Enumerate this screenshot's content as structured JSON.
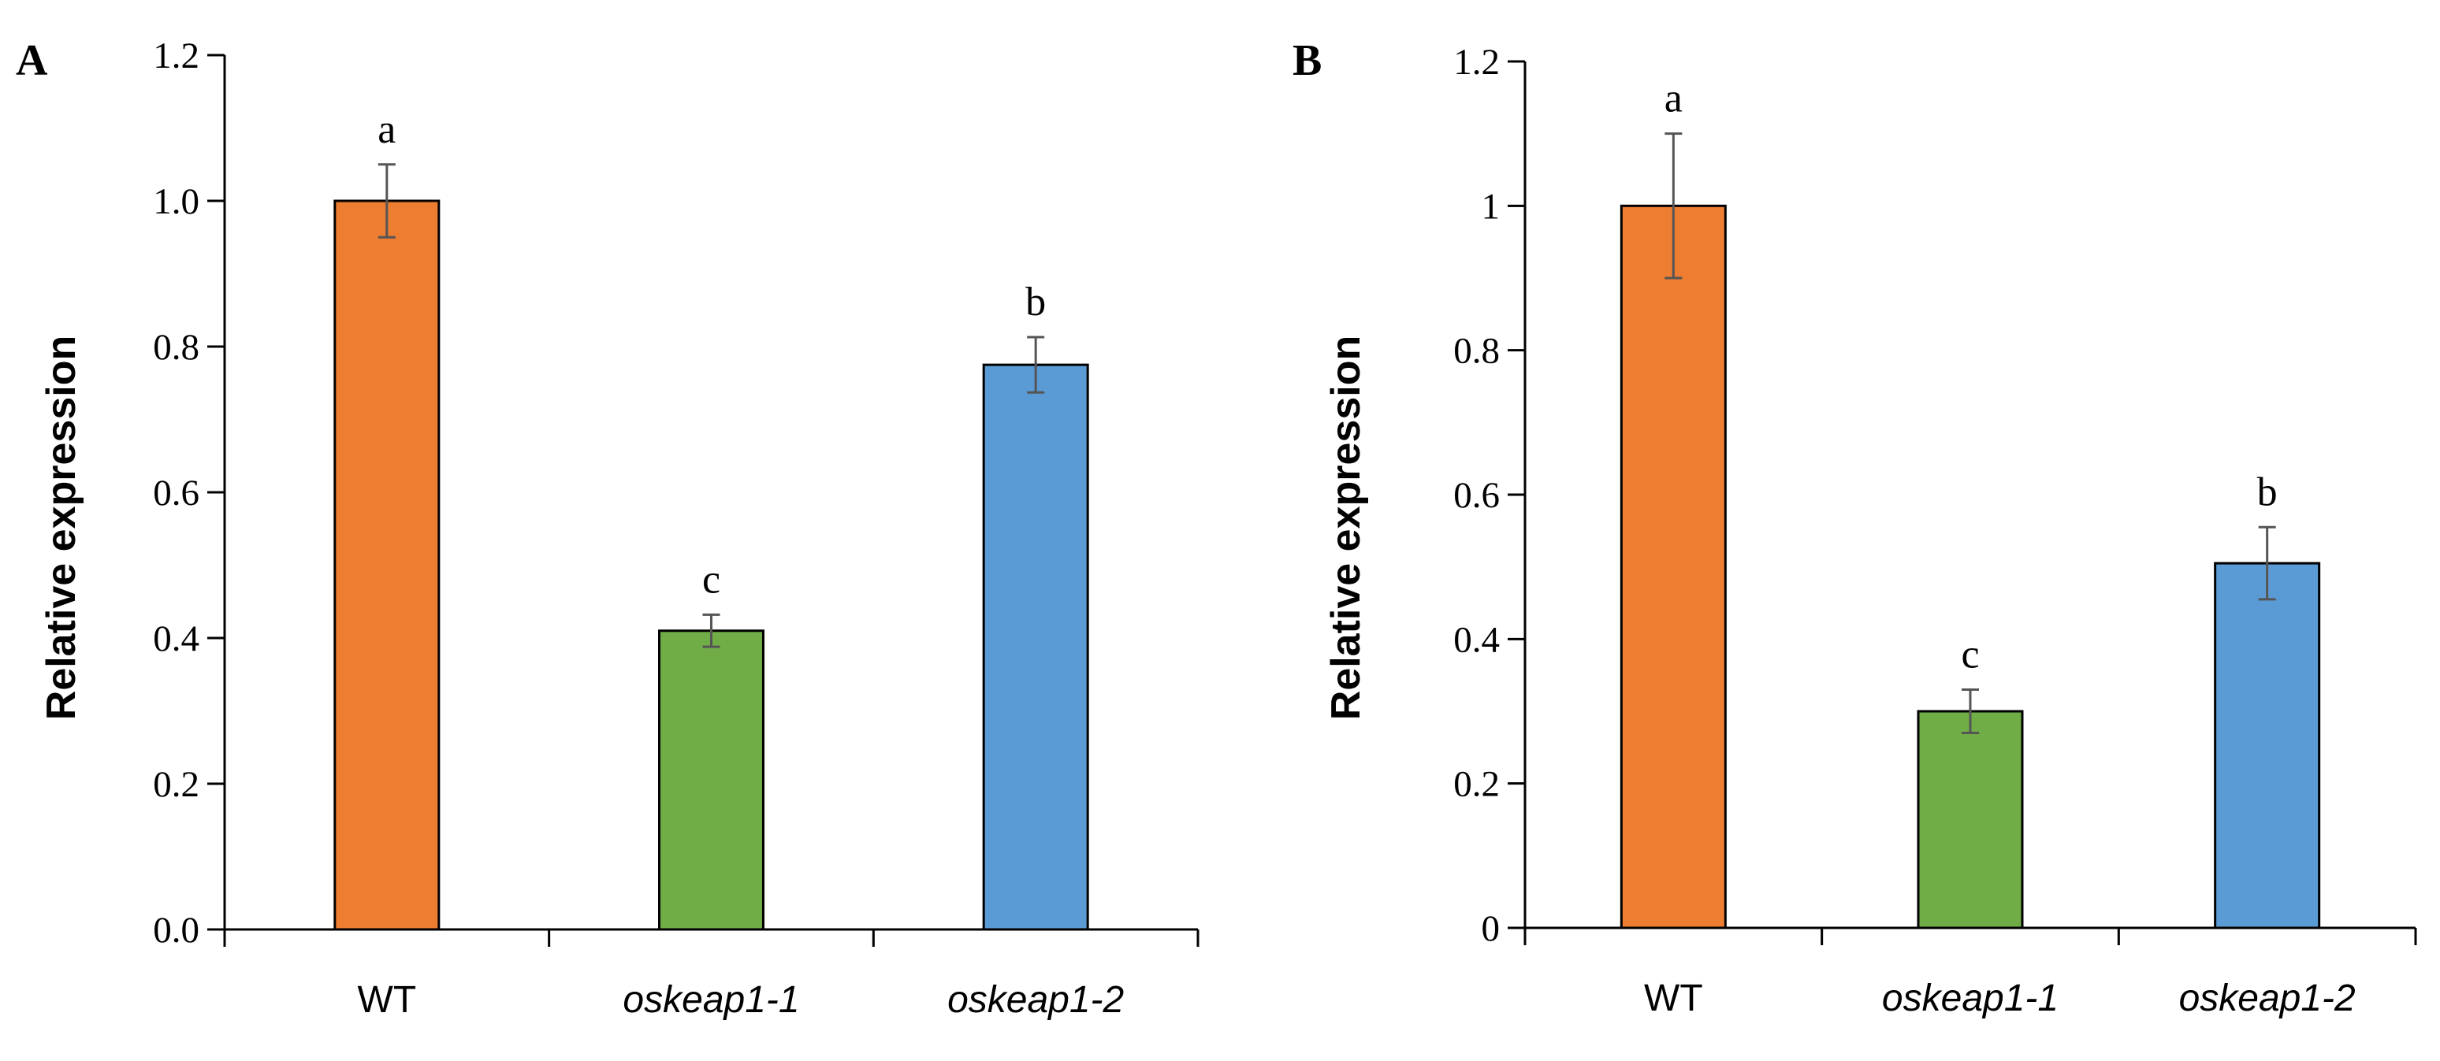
{
  "chart_data": [
    {
      "panel": "A",
      "type": "bar",
      "ylabel": "Relative expression",
      "ylim": [
        0,
        1.2
      ],
      "yticks": [
        "0.0",
        "0.2",
        "0.4",
        "0.6",
        "0.8",
        "1.0",
        "1.2"
      ],
      "categories": [
        "WT",
        "oskeap1-1",
        "oskeap1-2"
      ],
      "values": [
        1.0,
        0.41,
        0.775
      ],
      "errors": [
        0.05,
        0.022,
        0.038
      ],
      "significance": [
        "a",
        "c",
        "b"
      ],
      "colors": [
        "#ED7D31",
        "#70AD47",
        "#5B9BD5"
      ]
    },
    {
      "panel": "B",
      "type": "bar",
      "ylabel": "Relative expression",
      "ylim": [
        0,
        1.2
      ],
      "yticks": [
        "0",
        "0.2",
        "0.4",
        "0.6",
        "0.8",
        "1",
        "1.2"
      ],
      "categories": [
        "WT",
        "oskeap1-1",
        "oskeap1-2"
      ],
      "values": [
        1.0,
        0.3,
        0.505
      ],
      "errors": [
        0.1,
        0.03,
        0.05
      ],
      "significance": [
        "a",
        "c",
        "b"
      ],
      "colors": [
        "#ED7D31",
        "#70AD47",
        "#5B9BD5"
      ]
    }
  ]
}
